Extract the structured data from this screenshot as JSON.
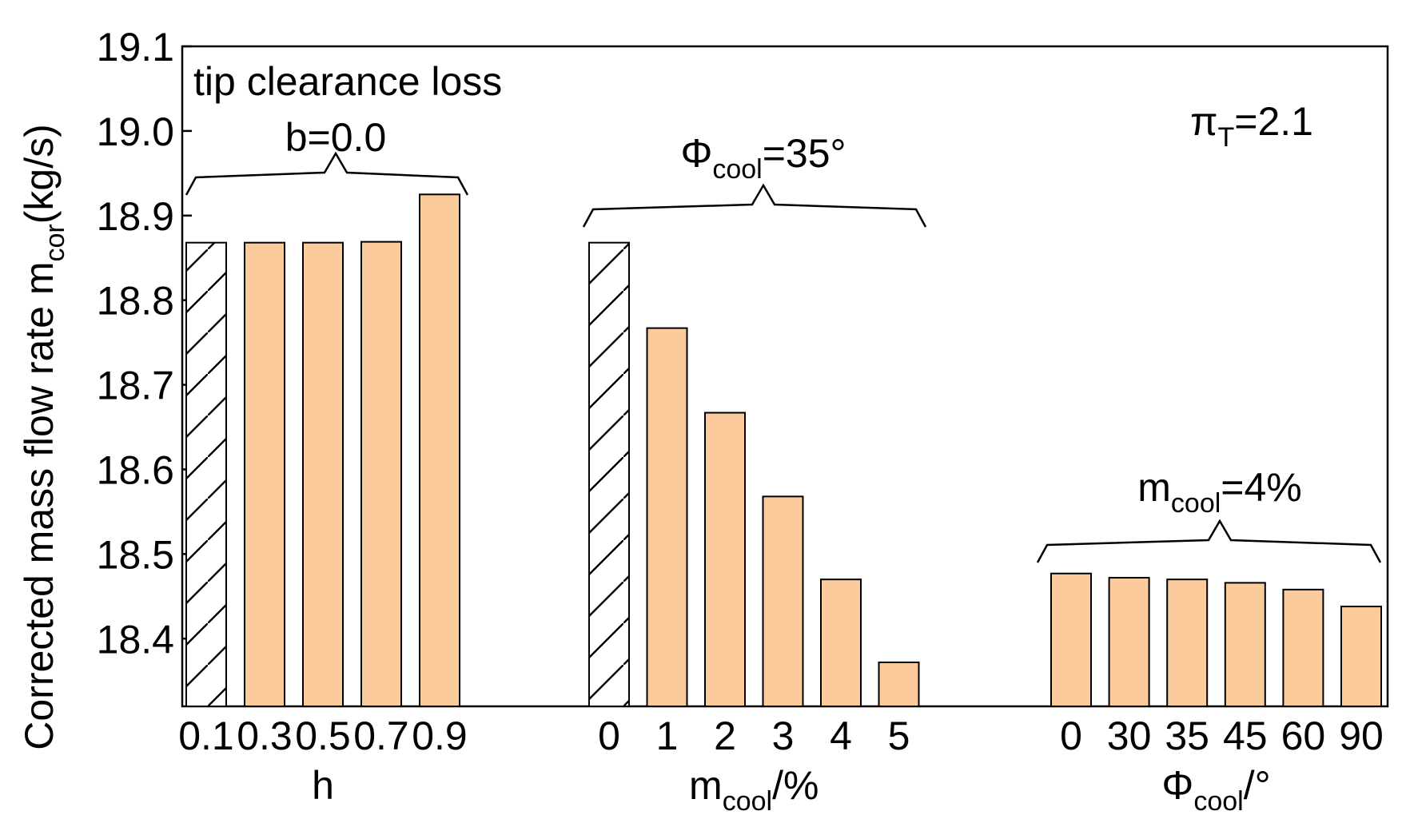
{
  "chart_data": {
    "type": "bar",
    "ylabel": "Corrected mass flow rate m",
    "ylabel_sub": "cor",
    "ylabel_unit": "(kg/s)",
    "ylim": [
      18.32,
      19.1
    ],
    "yticks": [
      "18.4",
      "18.5",
      "18.6",
      "18.7",
      "18.8",
      "18.9",
      "19.0",
      "19.1"
    ],
    "grid": false,
    "colors": {
      "bar_fill": "#FBCB9B",
      "bar_edge": "#000000",
      "hatch_fill": "#FFFFFF"
    },
    "groups": [
      {
        "name": "h",
        "xlabel": "h",
        "xlabel_sub": "",
        "xlabel_unit": "",
        "categories": [
          "0.1",
          "0.3",
          "0.5",
          "0.7",
          "0.9"
        ],
        "values": [
          18.868,
          18.868,
          18.868,
          18.869,
          18.925
        ],
        "hatched": [
          true,
          false,
          false,
          false,
          false
        ],
        "bracket_label": "b=0.0",
        "bracket_label_sub": "",
        "bracket_label_rest": ""
      },
      {
        "name": "mcool",
        "xlabel": "m",
        "xlabel_sub": "cool",
        "xlabel_unit": "/%",
        "categories": [
          "0",
          "1",
          "2",
          "3",
          "4",
          "5"
        ],
        "values": [
          18.868,
          18.767,
          18.667,
          18.568,
          18.47,
          18.372
        ],
        "hatched": [
          true,
          false,
          false,
          false,
          false,
          false
        ],
        "bracket_label": "Φ",
        "bracket_label_sub": "cool",
        "bracket_label_rest": "=35°"
      },
      {
        "name": "phicool",
        "xlabel": "Φ",
        "xlabel_sub": "cool",
        "xlabel_unit": "/°",
        "categories": [
          "0",
          "30",
          "35",
          "45",
          "60",
          "90"
        ],
        "values": [
          18.477,
          18.472,
          18.47,
          18.466,
          18.458,
          18.438
        ],
        "hatched": [
          false,
          false,
          false,
          false,
          false,
          false
        ],
        "bracket_label": "m",
        "bracket_label_sub": "cool",
        "bracket_label_rest": "=4%"
      }
    ],
    "annotations": {
      "top_left": "tip clearance loss",
      "pressure_ratio": "π",
      "pressure_ratio_sub": "T",
      "pressure_ratio_rest": "=2.1"
    }
  }
}
